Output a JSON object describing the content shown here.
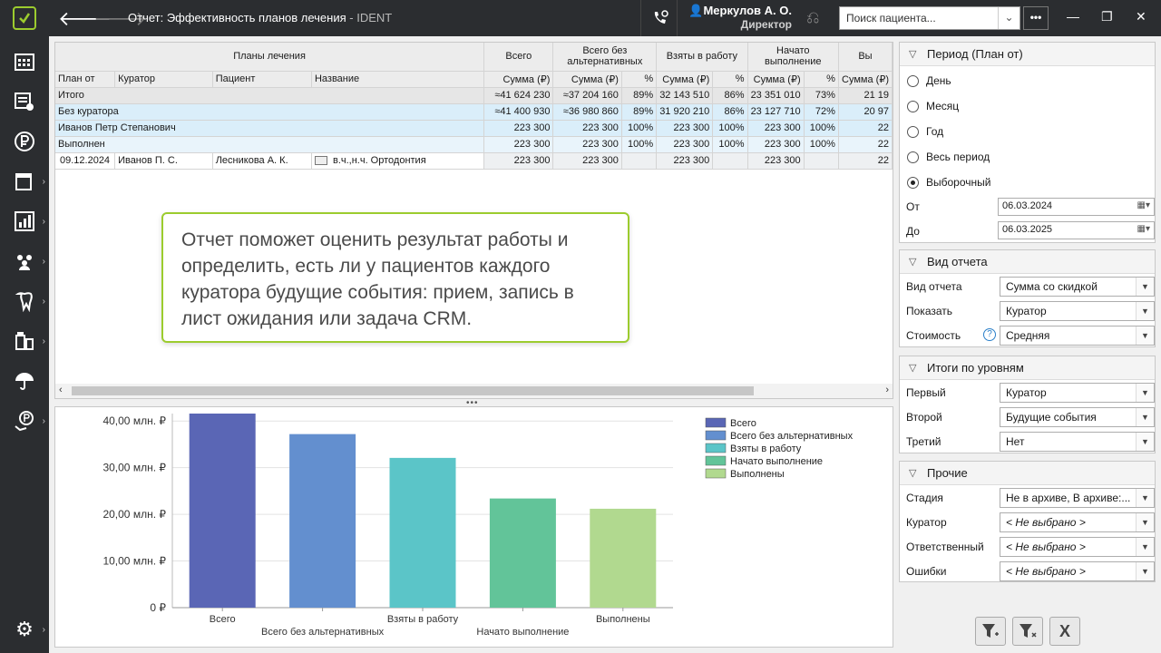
{
  "window": {
    "title": "Отчет: Эффективность планов лечения",
    "app": "IDENT",
    "separator": " - "
  },
  "user": {
    "name": "Меркулов А. О.",
    "role": "Директор"
  },
  "search": {
    "placeholder": "Поиск пациента..."
  },
  "more_label": "•••",
  "grid": {
    "group_header": "Планы лечения",
    "columns": {
      "plan_from": "План от",
      "curator": "Куратор",
      "patient": "Пациент",
      "name": "Название",
      "total": "Всего",
      "total_noalt": "Всего без альтернативных",
      "taken": "Взяты в работу",
      "started": "Начато выполнение",
      "done": "Вы"
    },
    "sum_label": "Сумма (₽)",
    "pct_label": "%",
    "rows": [
      {
        "kind": "total",
        "label": "Итого",
        "total": "≈41 624 230",
        "noalt": "≈37 204 160",
        "noalt_pct": "89%",
        "taken": "32 143 510",
        "taken_pct": "86%",
        "started": "23 351 010",
        "started_pct": "73%",
        "done": "21 19"
      },
      {
        "kind": "lvl1",
        "label": "Без куратора",
        "total": "≈41 400 930",
        "noalt": "≈36 980 860",
        "noalt_pct": "89%",
        "taken": "31 920 210",
        "taken_pct": "86%",
        "started": "23 127 710",
        "started_pct": "72%",
        "done": "20 97"
      },
      {
        "kind": "lvl1",
        "label": "Иванов Петр Степанович",
        "total": "223 300",
        "noalt": "223 300",
        "noalt_pct": "100%",
        "taken": "223 300",
        "taken_pct": "100%",
        "started": "223 300",
        "started_pct": "100%",
        "done": "22"
      },
      {
        "kind": "lvl2",
        "label": "Выполнен",
        "total": "223 300",
        "noalt": "223 300",
        "noalt_pct": "100%",
        "taken": "223 300",
        "taken_pct": "100%",
        "started": "223 300",
        "started_pct": "100%",
        "done": "22"
      }
    ],
    "detail": {
      "date": "09.12.2024",
      "curator": "Иванов П. С.",
      "patient": "Лесникова А. К.",
      "name": "в.ч.,н.ч. Ортодонтия",
      "total": "223 300",
      "noalt": "223 300",
      "taken": "223 300",
      "started": "223 300",
      "done": "22"
    }
  },
  "callout": "Отчет поможет оценить результат работы и определить, есть ли у пациентов каждого куратора будущие события: прием, запись в лист ожидания или задача CRM.",
  "chart_data": {
    "type": "bar",
    "categories": [
      "Всего",
      "Всего без альтернативных",
      "Взяты в работу",
      "Начато выполнение",
      "Выполнены"
    ],
    "values": [
      41.6,
      37.2,
      32.1,
      23.4,
      21.2
    ],
    "colors": [
      "#5a66b5",
      "#638fcf",
      "#5bc5c8",
      "#62c499",
      "#b1d98f"
    ],
    "yticks": [
      "0 ₽",
      "10,00 млн. ₽",
      "20,00 млн. ₽",
      "30,00 млн. ₽",
      "40,00 млн. ₽"
    ],
    "ylim": [
      0,
      41.6
    ],
    "legend": [
      "Всего",
      "Всего без альтернативных",
      "Взяты в работу",
      "Начато выполнение",
      "Выполнены"
    ],
    "legend_position": "top-right",
    "grid": true
  },
  "filters": {
    "period": {
      "title": "Период (План от)",
      "options": [
        "День",
        "Месяц",
        "Год",
        "Весь период",
        "Выборочный"
      ],
      "selected": "Выборочный",
      "from_label": "От",
      "from": "06.03.2024",
      "to_label": "До",
      "to": "06.03.2025"
    },
    "view": {
      "title": "Вид отчета",
      "view_label": "Вид отчета",
      "view_value": "Сумма со скидкой",
      "show_label": "Показать",
      "show_value": "Куратор",
      "cost_label": "Стоимость",
      "cost_value": "Средняя"
    },
    "levels": {
      "title": "Итоги по уровням",
      "first_label": "Первый",
      "first_value": "Куратор",
      "second_label": "Второй",
      "second_value": "Будущие события",
      "third_label": "Третий",
      "third_value": "Нет"
    },
    "other": {
      "title": "Прочие",
      "stage_label": "Стадия",
      "stage_value": "Не в архиве, В архиве:...",
      "curator_label": "Куратор",
      "curator_value": "< Не выбрано >",
      "resp_label": "Ответственный",
      "resp_value": "< Не выбрано >",
      "errors_label": "Ошибки",
      "errors_value": "< Не выбрано >"
    }
  }
}
